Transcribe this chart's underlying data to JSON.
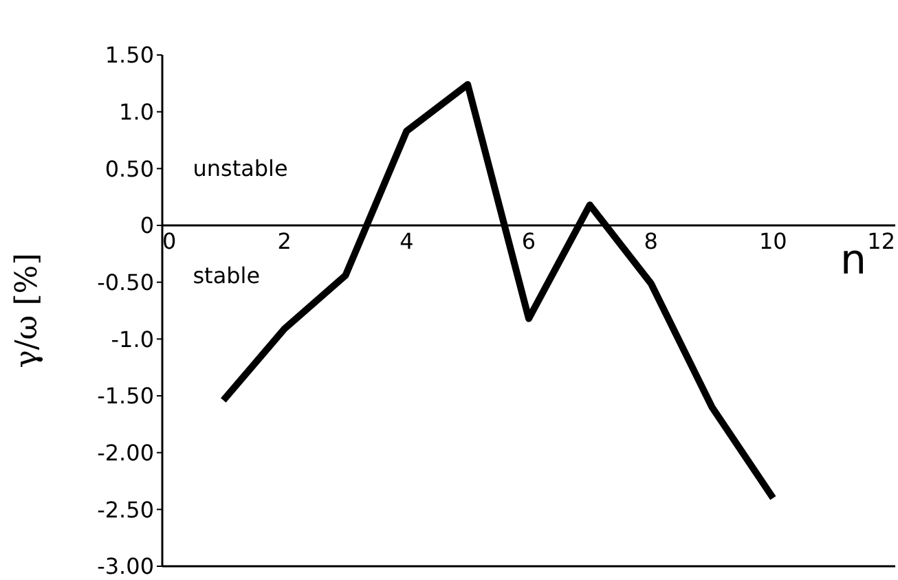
{
  "chart_data": {
    "type": "line",
    "xlabel": "n",
    "ylabel": "γ/ω [%]",
    "annotations": [
      "unstable",
      "stable"
    ],
    "x": [
      1,
      2,
      3,
      4,
      5,
      6,
      7,
      8,
      9,
      10
    ],
    "series": [
      {
        "color": "#000000",
        "values": [
          -1.54,
          -0.91,
          -0.44,
          0.83,
          1.24,
          -0.82,
          0.18,
          -0.51,
          -1.6,
          -2.4
        ]
      }
    ],
    "xlim": [
      0,
      12
    ],
    "xticks": [
      0,
      2,
      4,
      6,
      8,
      10,
      12
    ],
    "ylim": [
      -3,
      1.5
    ],
    "yticks": [
      {
        "value": 1.5,
        "label": "1.50"
      },
      {
        "value": 1,
        "label": "1.0"
      },
      {
        "value": 0.5,
        "label": "0.50"
      },
      0,
      {
        "value": -0.5,
        "label": "-0.50"
      },
      {
        "value": -1,
        "label": "-1.0"
      },
      {
        "value": -1.5,
        "label": "-1.50"
      },
      {
        "value": -2,
        "label": "-2.00"
      },
      {
        "value": -2.5,
        "label": "-2.50"
      },
      {
        "value": -3,
        "label": "-3.00"
      }
    ],
    "marker": "none",
    "line_style": "solid"
  }
}
